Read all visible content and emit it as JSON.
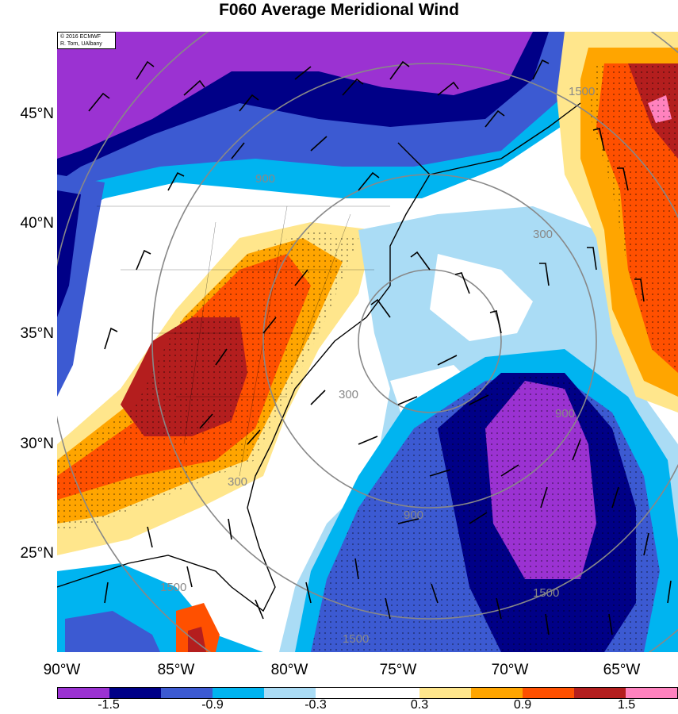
{
  "title": "F060 Average Meridional Wind",
  "copyright": [
    "© 2016 ECMWF",
    "R. Torn, UAlbany"
  ],
  "lat_labels": [
    "45°N",
    "40°N",
    "35°N",
    "30°N",
    "25°N"
  ],
  "lon_labels": [
    "90°W",
    "85°W",
    "80°W",
    "75°W",
    "70°W",
    "65°W"
  ],
  "contour_labels": [
    "300",
    "300",
    "300",
    "900",
    "900",
    "900",
    "1500",
    "1500",
    "1500",
    "1500"
  ],
  "colorbar": {
    "colors": [
      "#9b32d2",
      "#000087",
      "#3c5ad2",
      "#00b4f0",
      "#aadcf5",
      "#ffffff",
      "#ffffff",
      "#ffe68c",
      "#ffa500",
      "#ff5000",
      "#b41e1e",
      "#ff82be"
    ],
    "labels": [
      "-1.5",
      "-0.9",
      "-0.3",
      "0.3",
      "0.9",
      "1.5"
    ]
  }
}
